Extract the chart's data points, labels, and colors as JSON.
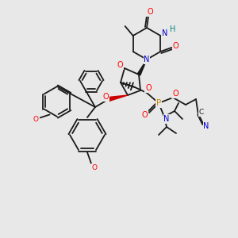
{
  "bg_color": "#e8e8e8",
  "atom_colors": {
    "O": "#ff0000",
    "N": "#0000cc",
    "P": "#cc8800",
    "C": "#1a1a1a",
    "H": "#008080",
    "bond": "#1a1a1a",
    "red_bond": "#cc0000"
  },
  "figsize": [
    3.0,
    3.0
  ],
  "dpi": 100
}
